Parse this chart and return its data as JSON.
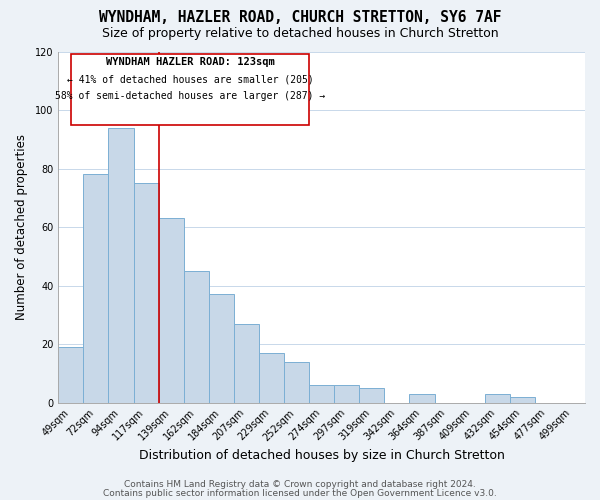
{
  "title": "WYNDHAM, HAZLER ROAD, CHURCH STRETTON, SY6 7AF",
  "subtitle": "Size of property relative to detached houses in Church Stretton",
  "xlabel": "Distribution of detached houses by size in Church Stretton",
  "ylabel": "Number of detached properties",
  "bar_labels": [
    "49sqm",
    "72sqm",
    "94sqm",
    "117sqm",
    "139sqm",
    "162sqm",
    "184sqm",
    "207sqm",
    "229sqm",
    "252sqm",
    "274sqm",
    "297sqm",
    "319sqm",
    "342sqm",
    "364sqm",
    "387sqm",
    "409sqm",
    "432sqm",
    "454sqm",
    "477sqm",
    "499sqm"
  ],
  "bar_values": [
    19,
    78,
    94,
    75,
    63,
    45,
    37,
    27,
    17,
    14,
    6,
    6,
    5,
    0,
    3,
    0,
    0,
    3,
    2,
    0,
    0
  ],
  "bar_color": "#c8d8e8",
  "bar_edge_color": "#7bafd4",
  "highlight_index": 3,
  "highlight_line_color": "#cc0000",
  "ylim": [
    0,
    120
  ],
  "yticks": [
    0,
    20,
    40,
    60,
    80,
    100,
    120
  ],
  "annotation_title": "WYNDHAM HAZLER ROAD: 123sqm",
  "annotation_line1": "← 41% of detached houses are smaller (205)",
  "annotation_line2": "58% of semi-detached houses are larger (287) →",
  "annotation_box_color": "#ffffff",
  "annotation_box_edge_color": "#cc0000",
  "footer1": "Contains HM Land Registry data © Crown copyright and database right 2024.",
  "footer2": "Contains public sector information licensed under the Open Government Licence v3.0.",
  "background_color": "#edf2f7",
  "plot_background_color": "#ffffff",
  "grid_color": "#c8d8ea",
  "title_fontsize": 10.5,
  "subtitle_fontsize": 9,
  "xlabel_fontsize": 9,
  "ylabel_fontsize": 8.5,
  "tick_fontsize": 7,
  "footer_fontsize": 6.5
}
